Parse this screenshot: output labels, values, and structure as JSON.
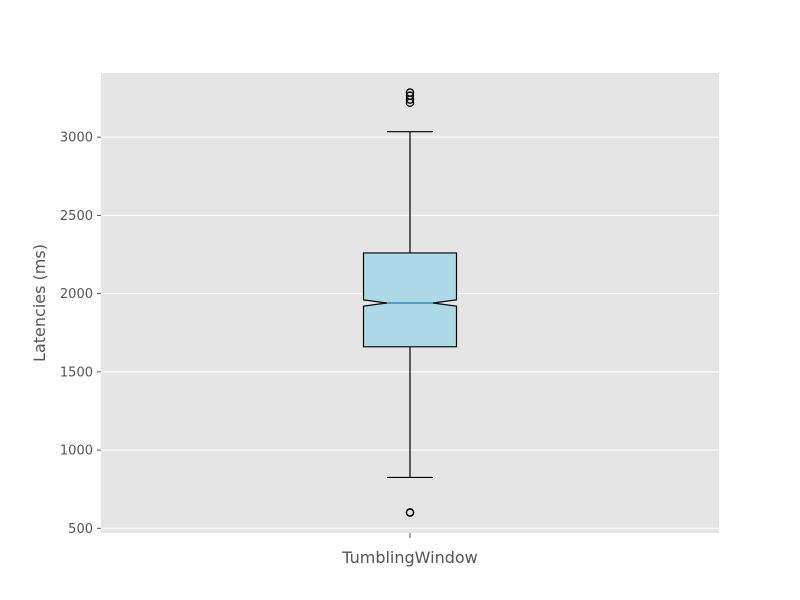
{
  "chart_data": {
    "type": "boxplot",
    "notched": true,
    "title": "",
    "xlabel": "",
    "ylabel": "Latencies (ms)",
    "categories": [
      "TumblingWindow"
    ],
    "ylim": [
      470,
      3410
    ],
    "yticks": [
      500,
      1000,
      1500,
      2000,
      2500,
      3000
    ],
    "grid": true,
    "colors": {
      "plot_background": "#e5e5e5",
      "grid": "#ffffff",
      "box_fill": "#add8e6",
      "box_edge": "#000000",
      "median": "#1f77b4",
      "whisker": "#000000",
      "outlier_edge": "#000000",
      "tick_text": "#555555",
      "label_text": "#555555"
    },
    "series": [
      {
        "category": "TumblingWindow",
        "whisker_low": 825,
        "q1": 1660,
        "median": 1940,
        "q3": 2260,
        "notch_low": 1920,
        "notch_high": 1960,
        "whisker_high": 3035,
        "outliers": [
          600,
          602,
          3220,
          3240,
          3265,
          3285
        ]
      }
    ]
  }
}
